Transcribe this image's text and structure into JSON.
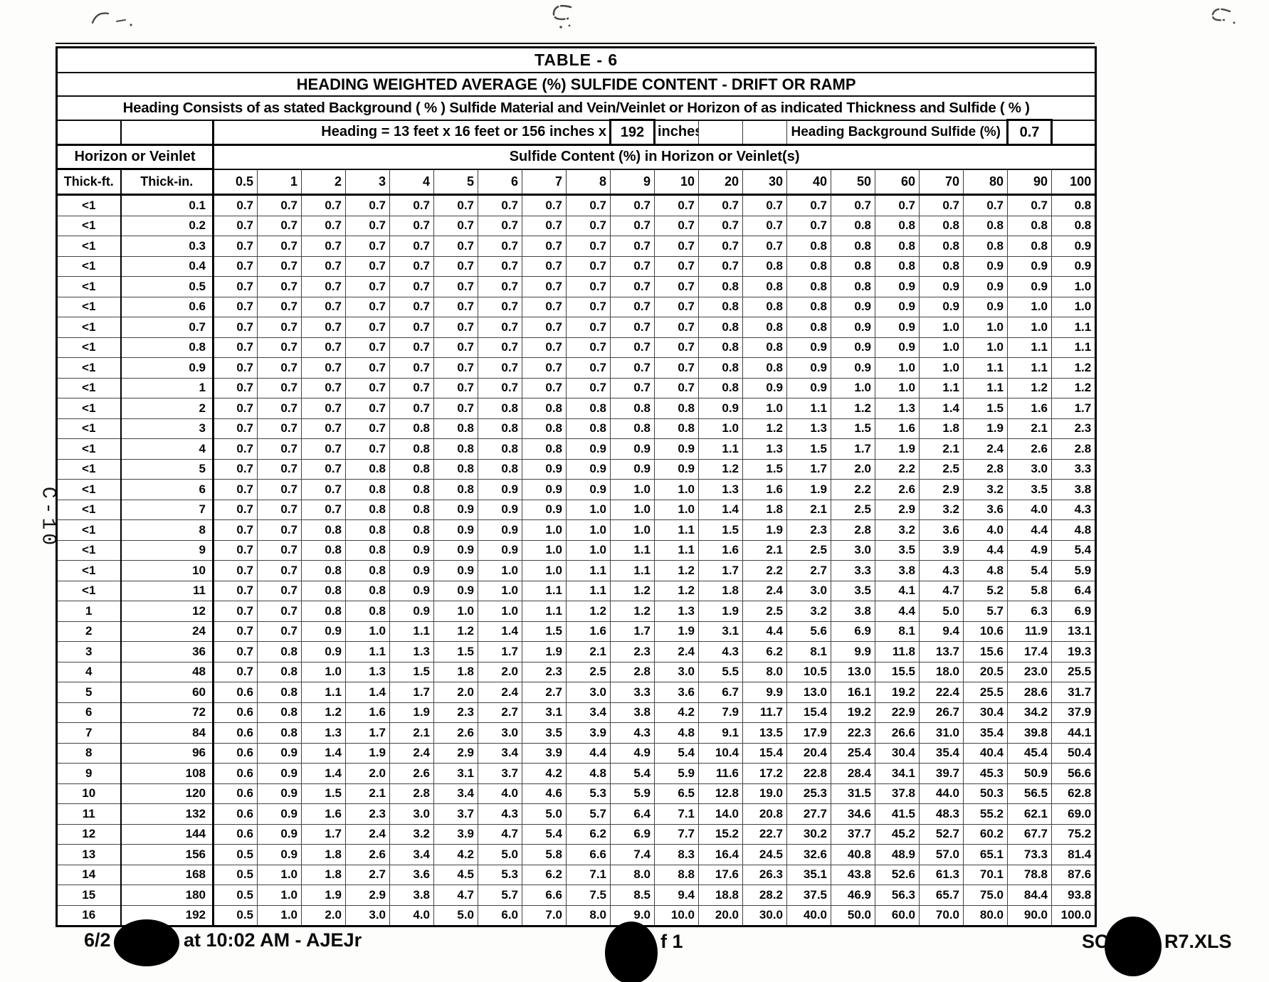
{
  "page": {
    "side_label": "C-10",
    "footer": {
      "left_date": "6/2",
      "left_text": "at 10:02 AM - AJEJr",
      "center_text": "f 1",
      "right_prefix": "SC",
      "right_suffix": "R7.XLS"
    }
  },
  "table": {
    "title": "TABLE  -  6",
    "subtitle": "HEADING WEIGHTED AVERAGE (%) SULFIDE CONTENT  -  DRIFT OR RAMP",
    "description": "Heading Consists of as stated Background  ( % )  Sulfide Material and Vein/Veinlet or Horizon of as indicated Thickness and Sulfide ( % )",
    "heading_dims_label": "Heading = 13 feet x 16 feet or 156 inches x",
    "heading_width_value": "192",
    "heading_dims_unit": "inches",
    "background_sulfide_label": "Heading Background Sulfide (%)",
    "background_sulfide_value": "0.7",
    "row_group_header": "Horizon or Veinlet",
    "col_group_header": "Sulfide Content (%) in Horizon or Veinlet(s)",
    "col1_header": "Thick-ft.",
    "col2_header": "Thick-in.",
    "sulfide_columns": [
      "0.5",
      "1",
      "2",
      "3",
      "4",
      "5",
      "6",
      "7",
      "8",
      "9",
      "10",
      "20",
      "30",
      "40",
      "50",
      "60",
      "70",
      "80",
      "90",
      "100"
    ],
    "rows": [
      {
        "ft": "<1",
        "in": "0.1",
        "values": [
          "0.7",
          "0.7",
          "0.7",
          "0.7",
          "0.7",
          "0.7",
          "0.7",
          "0.7",
          "0.7",
          "0.7",
          "0.7",
          "0.7",
          "0.7",
          "0.7",
          "0.7",
          "0.7",
          "0.7",
          "0.7",
          "0.7",
          "0.8"
        ]
      },
      {
        "ft": "<1",
        "in": "0.2",
        "values": [
          "0.7",
          "0.7",
          "0.7",
          "0.7",
          "0.7",
          "0.7",
          "0.7",
          "0.7",
          "0.7",
          "0.7",
          "0.7",
          "0.7",
          "0.7",
          "0.7",
          "0.8",
          "0.8",
          "0.8",
          "0.8",
          "0.8",
          "0.8"
        ]
      },
      {
        "ft": "<1",
        "in": "0.3",
        "values": [
          "0.7",
          "0.7",
          "0.7",
          "0.7",
          "0.7",
          "0.7",
          "0.7",
          "0.7",
          "0.7",
          "0.7",
          "0.7",
          "0.7",
          "0.7",
          "0.8",
          "0.8",
          "0.8",
          "0.8",
          "0.8",
          "0.8",
          "0.9"
        ]
      },
      {
        "ft": "<1",
        "in": "0.4",
        "values": [
          "0.7",
          "0.7",
          "0.7",
          "0.7",
          "0.7",
          "0.7",
          "0.7",
          "0.7",
          "0.7",
          "0.7",
          "0.7",
          "0.7",
          "0.8",
          "0.8",
          "0.8",
          "0.8",
          "0.8",
          "0.9",
          "0.9",
          "0.9"
        ]
      },
      {
        "ft": "<1",
        "in": "0.5",
        "values": [
          "0.7",
          "0.7",
          "0.7",
          "0.7",
          "0.7",
          "0.7",
          "0.7",
          "0.7",
          "0.7",
          "0.7",
          "0.7",
          "0.8",
          "0.8",
          "0.8",
          "0.8",
          "0.9",
          "0.9",
          "0.9",
          "0.9",
          "1.0"
        ]
      },
      {
        "ft": "<1",
        "in": "0.6",
        "values": [
          "0.7",
          "0.7",
          "0.7",
          "0.7",
          "0.7",
          "0.7",
          "0.7",
          "0.7",
          "0.7",
          "0.7",
          "0.7",
          "0.8",
          "0.8",
          "0.8",
          "0.9",
          "0.9",
          "0.9",
          "0.9",
          "1.0",
          "1.0"
        ]
      },
      {
        "ft": "<1",
        "in": "0.7",
        "values": [
          "0.7",
          "0.7",
          "0.7",
          "0.7",
          "0.7",
          "0.7",
          "0.7",
          "0.7",
          "0.7",
          "0.7",
          "0.7",
          "0.8",
          "0.8",
          "0.8",
          "0.9",
          "0.9",
          "1.0",
          "1.0",
          "1.0",
          "1.1"
        ]
      },
      {
        "ft": "<1",
        "in": "0.8",
        "values": [
          "0.7",
          "0.7",
          "0.7",
          "0.7",
          "0.7",
          "0.7",
          "0.7",
          "0.7",
          "0.7",
          "0.7",
          "0.7",
          "0.8",
          "0.8",
          "0.9",
          "0.9",
          "0.9",
          "1.0",
          "1.0",
          "1.1",
          "1.1"
        ]
      },
      {
        "ft": "<1",
        "in": "0.9",
        "values": [
          "0.7",
          "0.7",
          "0.7",
          "0.7",
          "0.7",
          "0.7",
          "0.7",
          "0.7",
          "0.7",
          "0.7",
          "0.7",
          "0.8",
          "0.8",
          "0.9",
          "0.9",
          "1.0",
          "1.0",
          "1.1",
          "1.1",
          "1.2"
        ]
      },
      {
        "ft": "<1",
        "in": "1",
        "values": [
          "0.7",
          "0.7",
          "0.7",
          "0.7",
          "0.7",
          "0.7",
          "0.7",
          "0.7",
          "0.7",
          "0.7",
          "0.7",
          "0.8",
          "0.9",
          "0.9",
          "1.0",
          "1.0",
          "1.1",
          "1.1",
          "1.2",
          "1.2"
        ]
      },
      {
        "ft": "<1",
        "in": "2",
        "values": [
          "0.7",
          "0.7",
          "0.7",
          "0.7",
          "0.7",
          "0.7",
          "0.8",
          "0.8",
          "0.8",
          "0.8",
          "0.8",
          "0.9",
          "1.0",
          "1.1",
          "1.2",
          "1.3",
          "1.4",
          "1.5",
          "1.6",
          "1.7"
        ]
      },
      {
        "ft": "<1",
        "in": "3",
        "values": [
          "0.7",
          "0.7",
          "0.7",
          "0.7",
          "0.8",
          "0.8",
          "0.8",
          "0.8",
          "0.8",
          "0.8",
          "0.8",
          "1.0",
          "1.2",
          "1.3",
          "1.5",
          "1.6",
          "1.8",
          "1.9",
          "2.1",
          "2.3"
        ]
      },
      {
        "ft": "<1",
        "in": "4",
        "values": [
          "0.7",
          "0.7",
          "0.7",
          "0.7",
          "0.8",
          "0.8",
          "0.8",
          "0.8",
          "0.9",
          "0.9",
          "0.9",
          "1.1",
          "1.3",
          "1.5",
          "1.7",
          "1.9",
          "2.1",
          "2.4",
          "2.6",
          "2.8"
        ]
      },
      {
        "ft": "<1",
        "in": "5",
        "values": [
          "0.7",
          "0.7",
          "0.7",
          "0.8",
          "0.8",
          "0.8",
          "0.8",
          "0.9",
          "0.9",
          "0.9",
          "0.9",
          "1.2",
          "1.5",
          "1.7",
          "2.0",
          "2.2",
          "2.5",
          "2.8",
          "3.0",
          "3.3"
        ]
      },
      {
        "ft": "<1",
        "in": "6",
        "values": [
          "0.7",
          "0.7",
          "0.7",
          "0.8",
          "0.8",
          "0.8",
          "0.9",
          "0.9",
          "0.9",
          "1.0",
          "1.0",
          "1.3",
          "1.6",
          "1.9",
          "2.2",
          "2.6",
          "2.9",
          "3.2",
          "3.5",
          "3.8"
        ]
      },
      {
        "ft": "<1",
        "in": "7",
        "values": [
          "0.7",
          "0.7",
          "0.7",
          "0.8",
          "0.8",
          "0.9",
          "0.9",
          "0.9",
          "1.0",
          "1.0",
          "1.0",
          "1.4",
          "1.8",
          "2.1",
          "2.5",
          "2.9",
          "3.2",
          "3.6",
          "4.0",
          "4.3"
        ]
      },
      {
        "ft": "<1",
        "in": "8",
        "values": [
          "0.7",
          "0.7",
          "0.8",
          "0.8",
          "0.8",
          "0.9",
          "0.9",
          "1.0",
          "1.0",
          "1.0",
          "1.1",
          "1.5",
          "1.9",
          "2.3",
          "2.8",
          "3.2",
          "3.6",
          "4.0",
          "4.4",
          "4.8"
        ]
      },
      {
        "ft": "<1",
        "in": "9",
        "values": [
          "0.7",
          "0.7",
          "0.8",
          "0.8",
          "0.9",
          "0.9",
          "0.9",
          "1.0",
          "1.0",
          "1.1",
          "1.1",
          "1.6",
          "2.1",
          "2.5",
          "3.0",
          "3.5",
          "3.9",
          "4.4",
          "4.9",
          "5.4"
        ]
      },
      {
        "ft": "<1",
        "in": "10",
        "values": [
          "0.7",
          "0.7",
          "0.8",
          "0.8",
          "0.9",
          "0.9",
          "1.0",
          "1.0",
          "1.1",
          "1.1",
          "1.2",
          "1.7",
          "2.2",
          "2.7",
          "3.3",
          "3.8",
          "4.3",
          "4.8",
          "5.4",
          "5.9"
        ]
      },
      {
        "ft": "<1",
        "in": "11",
        "values": [
          "0.7",
          "0.7",
          "0.8",
          "0.8",
          "0.9",
          "0.9",
          "1.0",
          "1.1",
          "1.1",
          "1.2",
          "1.2",
          "1.8",
          "2.4",
          "3.0",
          "3.5",
          "4.1",
          "4.7",
          "5.2",
          "5.8",
          "6.4"
        ]
      },
      {
        "ft": "1",
        "in": "12",
        "values": [
          "0.7",
          "0.7",
          "0.8",
          "0.8",
          "0.9",
          "1.0",
          "1.0",
          "1.1",
          "1.2",
          "1.2",
          "1.3",
          "1.9",
          "2.5",
          "3.2",
          "3.8",
          "4.4",
          "5.0",
          "5.7",
          "6.3",
          "6.9"
        ]
      },
      {
        "ft": "2",
        "in": "24",
        "values": [
          "0.7",
          "0.7",
          "0.9",
          "1.0",
          "1.1",
          "1.2",
          "1.4",
          "1.5",
          "1.6",
          "1.7",
          "1.9",
          "3.1",
          "4.4",
          "5.6",
          "6.9",
          "8.1",
          "9.4",
          "10.6",
          "11.9",
          "13.1"
        ]
      },
      {
        "ft": "3",
        "in": "36",
        "values": [
          "0.7",
          "0.8",
          "0.9",
          "1.1",
          "1.3",
          "1.5",
          "1.7",
          "1.9",
          "2.1",
          "2.3",
          "2.4",
          "4.3",
          "6.2",
          "8.1",
          "9.9",
          "11.8",
          "13.7",
          "15.6",
          "17.4",
          "19.3"
        ]
      },
      {
        "ft": "4",
        "in": "48",
        "values": [
          "0.7",
          "0.8",
          "1.0",
          "1.3",
          "1.5",
          "1.8",
          "2.0",
          "2.3",
          "2.5",
          "2.8",
          "3.0",
          "5.5",
          "8.0",
          "10.5",
          "13.0",
          "15.5",
          "18.0",
          "20.5",
          "23.0",
          "25.5"
        ]
      },
      {
        "ft": "5",
        "in": "60",
        "values": [
          "0.6",
          "0.8",
          "1.1",
          "1.4",
          "1.7",
          "2.0",
          "2.4",
          "2.7",
          "3.0",
          "3.3",
          "3.6",
          "6.7",
          "9.9",
          "13.0",
          "16.1",
          "19.2",
          "22.4",
          "25.5",
          "28.6",
          "31.7"
        ]
      },
      {
        "ft": "6",
        "in": "72",
        "values": [
          "0.6",
          "0.8",
          "1.2",
          "1.6",
          "1.9",
          "2.3",
          "2.7",
          "3.1",
          "3.4",
          "3.8",
          "4.2",
          "7.9",
          "11.7",
          "15.4",
          "19.2",
          "22.9",
          "26.7",
          "30.4",
          "34.2",
          "37.9"
        ]
      },
      {
        "ft": "7",
        "in": "84",
        "values": [
          "0.6",
          "0.8",
          "1.3",
          "1.7",
          "2.1",
          "2.6",
          "3.0",
          "3.5",
          "3.9",
          "4.3",
          "4.8",
          "9.1",
          "13.5",
          "17.9",
          "22.3",
          "26.6",
          "31.0",
          "35.4",
          "39.8",
          "44.1"
        ]
      },
      {
        "ft": "8",
        "in": "96",
        "values": [
          "0.6",
          "0.9",
          "1.4",
          "1.9",
          "2.4",
          "2.9",
          "3.4",
          "3.9",
          "4.4",
          "4.9",
          "5.4",
          "10.4",
          "15.4",
          "20.4",
          "25.4",
          "30.4",
          "35.4",
          "40.4",
          "45.4",
          "50.4"
        ]
      },
      {
        "ft": "9",
        "in": "108",
        "values": [
          "0.6",
          "0.9",
          "1.4",
          "2.0",
          "2.6",
          "3.1",
          "3.7",
          "4.2",
          "4.8",
          "5.4",
          "5.9",
          "11.6",
          "17.2",
          "22.8",
          "28.4",
          "34.1",
          "39.7",
          "45.3",
          "50.9",
          "56.6"
        ]
      },
      {
        "ft": "10",
        "in": "120",
        "values": [
          "0.6",
          "0.9",
          "1.5",
          "2.1",
          "2.8",
          "3.4",
          "4.0",
          "4.6",
          "5.3",
          "5.9",
          "6.5",
          "12.8",
          "19.0",
          "25.3",
          "31.5",
          "37.8",
          "44.0",
          "50.3",
          "56.5",
          "62.8"
        ]
      },
      {
        "ft": "11",
        "in": "132",
        "values": [
          "0.6",
          "0.9",
          "1.6",
          "2.3",
          "3.0",
          "3.7",
          "4.3",
          "5.0",
          "5.7",
          "6.4",
          "7.1",
          "14.0",
          "20.8",
          "27.7",
          "34.6",
          "41.5",
          "48.3",
          "55.2",
          "62.1",
          "69.0"
        ]
      },
      {
        "ft": "12",
        "in": "144",
        "values": [
          "0.6",
          "0.9",
          "1.7",
          "2.4",
          "3.2",
          "3.9",
          "4.7",
          "5.4",
          "6.2",
          "6.9",
          "7.7",
          "15.2",
          "22.7",
          "30.2",
          "37.7",
          "45.2",
          "52.7",
          "60.2",
          "67.7",
          "75.2"
        ]
      },
      {
        "ft": "13",
        "in": "156",
        "values": [
          "0.5",
          "0.9",
          "1.8",
          "2.6",
          "3.4",
          "4.2",
          "5.0",
          "5.8",
          "6.6",
          "7.4",
          "8.3",
          "16.4",
          "24.5",
          "32.6",
          "40.8",
          "48.9",
          "57.0",
          "65.1",
          "73.3",
          "81.4"
        ]
      },
      {
        "ft": "14",
        "in": "168",
        "values": [
          "0.5",
          "1.0",
          "1.8",
          "2.7",
          "3.6",
          "4.5",
          "5.3",
          "6.2",
          "7.1",
          "8.0",
          "8.8",
          "17.6",
          "26.3",
          "35.1",
          "43.8",
          "52.6",
          "61.3",
          "70.1",
          "78.8",
          "87.6"
        ]
      },
      {
        "ft": "15",
        "in": "180",
        "values": [
          "0.5",
          "1.0",
          "1.9",
          "2.9",
          "3.8",
          "4.7",
          "5.7",
          "6.6",
          "7.5",
          "8.5",
          "9.4",
          "18.8",
          "28.2",
          "37.5",
          "46.9",
          "56.3",
          "65.7",
          "75.0",
          "84.4",
          "93.8"
        ]
      },
      {
        "ft": "16",
        "in": "192",
        "values": [
          "0.5",
          "1.0",
          "2.0",
          "3.0",
          "4.0",
          "5.0",
          "6.0",
          "7.0",
          "8.0",
          "9.0",
          "10.0",
          "20.0",
          "30.0",
          "40.0",
          "50.0",
          "60.0",
          "70.0",
          "80.0",
          "90.0",
          "100.0"
        ]
      }
    ]
  }
}
